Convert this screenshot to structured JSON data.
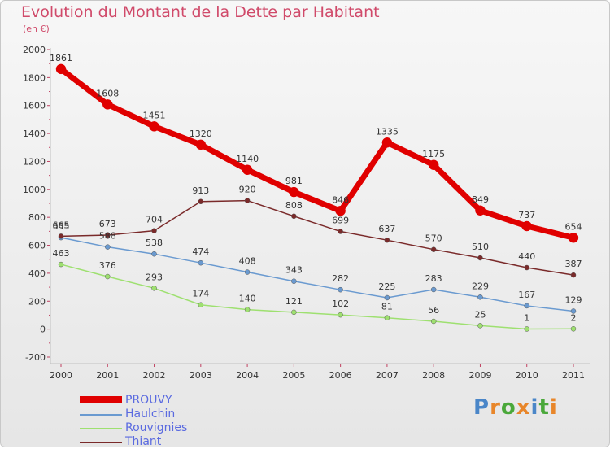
{
  "header": {
    "title": "Evolution du Montant de la Dette par Habitant",
    "unit": "(en €)"
  },
  "logo": {
    "letters": [
      "P",
      "r",
      "o",
      "x",
      "i",
      "t",
      "i"
    ],
    "colors": [
      "#4a86c8",
      "#e8862a",
      "#4aa83a",
      "#e8862a",
      "#4a86c8",
      "#4aa83a",
      "#e8862a"
    ]
  },
  "chart_data": {
    "type": "line",
    "x": [
      "2000",
      "2001",
      "2002",
      "2003",
      "2004",
      "2005",
      "2006",
      "2007",
      "2008",
      "2009",
      "2010",
      "2011"
    ],
    "ylim": [
      -200,
      2000
    ],
    "yticks": [
      -200,
      0,
      200,
      400,
      600,
      800,
      1000,
      1200,
      1400,
      1600,
      1800,
      2000
    ],
    "grid": false,
    "legend": "bottom-left",
    "series": [
      {
        "name": "PROUVY",
        "color": "#e00000",
        "values": [
          1861,
          1608,
          1451,
          1320,
          1140,
          981,
          846,
          1335,
          1175,
          849,
          737,
          654
        ]
      },
      {
        "name": "Haulchin",
        "color": "#6a9ad0",
        "values": [
          655,
          588,
          538,
          474,
          408,
          343,
          282,
          225,
          283,
          229,
          167,
          129
        ]
      },
      {
        "name": "Rouvignies",
        "color": "#9ee070",
        "values": [
          463,
          376,
          293,
          174,
          140,
          121,
          102,
          81,
          56,
          25,
          1,
          2
        ]
      },
      {
        "name": "Thiant",
        "color": "#7a2a2a",
        "values": [
          665,
          673,
          704,
          913,
          920,
          808,
          699,
          637,
          570,
          510,
          440,
          387
        ]
      }
    ]
  }
}
